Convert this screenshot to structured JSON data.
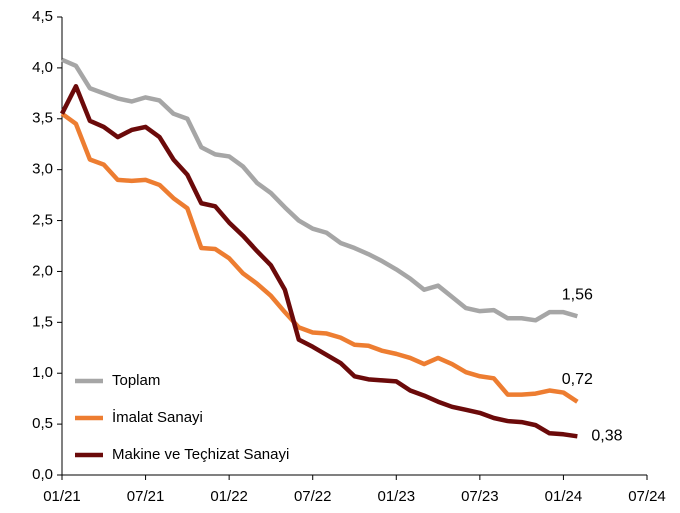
{
  "chart_data": {
    "type": "line",
    "categories": [
      "01/21",
      null,
      null,
      null,
      null,
      null,
      "07/21",
      null,
      null,
      null,
      null,
      null,
      "01/22",
      null,
      null,
      null,
      null,
      null,
      "07/22",
      null,
      null,
      null,
      null,
      null,
      "01/23",
      null,
      null,
      null,
      null,
      null,
      "07/23",
      null,
      null,
      null,
      null,
      null,
      "01/24",
      null,
      null,
      null,
      null,
      null,
      "07/24"
    ],
    "series": [
      {
        "name": "Toplam",
        "color": "#a6a6a6",
        "values": [
          4.08,
          4.02,
          3.8,
          3.75,
          3.7,
          3.67,
          3.71,
          3.68,
          3.55,
          3.5,
          3.22,
          3.15,
          3.13,
          3.03,
          2.87,
          2.77,
          2.63,
          2.5,
          2.42,
          2.38,
          2.28,
          2.23,
          2.17,
          2.1,
          2.02,
          1.93,
          1.82,
          1.86,
          1.75,
          1.64,
          1.61,
          1.62,
          1.54,
          1.54,
          1.52,
          1.6,
          1.6,
          1.56,
          null,
          null,
          null,
          null,
          null
        ],
        "value_labels": [
          null,
          null,
          null,
          null,
          null,
          null,
          null,
          null,
          null,
          null,
          null,
          null,
          null,
          null,
          null,
          null,
          null,
          null,
          null,
          null,
          null,
          null,
          null,
          null,
          null,
          null,
          null,
          null,
          null,
          null,
          null,
          null,
          null,
          null,
          null,
          null,
          null,
          "1,56",
          null,
          null,
          null,
          null,
          null
        ]
      },
      {
        "name": "İmalat Sanayi",
        "color": "#ed7d31",
        "values": [
          3.55,
          3.45,
          3.1,
          3.05,
          2.9,
          2.89,
          2.9,
          2.85,
          2.72,
          2.62,
          2.23,
          2.22,
          2.13,
          1.98,
          1.88,
          1.76,
          1.6,
          1.45,
          1.4,
          1.39,
          1.35,
          1.28,
          1.27,
          1.22,
          1.19,
          1.15,
          1.09,
          1.15,
          1.09,
          1.01,
          0.97,
          0.95,
          0.79,
          0.79,
          0.8,
          0.83,
          0.81,
          0.72,
          null,
          null,
          null,
          null,
          null
        ],
        "value_labels": [
          null,
          null,
          null,
          null,
          null,
          null,
          null,
          null,
          null,
          null,
          null,
          null,
          null,
          null,
          null,
          null,
          null,
          null,
          null,
          null,
          null,
          null,
          null,
          null,
          null,
          null,
          null,
          null,
          null,
          null,
          null,
          null,
          null,
          null,
          null,
          null,
          null,
          "0,72",
          null,
          null,
          null,
          null,
          null
        ]
      },
      {
        "name": "Makine ve Teçhizat Sanayi",
        "color": "#6b0a0a",
        "values": [
          3.55,
          3.82,
          3.48,
          3.42,
          3.32,
          3.39,
          3.42,
          3.32,
          3.1,
          2.95,
          2.67,
          2.64,
          2.48,
          2.35,
          2.2,
          2.06,
          1.82,
          1.33,
          1.26,
          1.18,
          1.1,
          0.97,
          0.94,
          0.93,
          0.92,
          0.83,
          0.78,
          0.72,
          0.67,
          0.64,
          0.61,
          0.56,
          0.53,
          0.52,
          0.49,
          0.41,
          0.4,
          0.38,
          null,
          null,
          null,
          null,
          null
        ],
        "value_labels": [
          null,
          null,
          null,
          null,
          null,
          null,
          null,
          null,
          null,
          null,
          null,
          null,
          null,
          null,
          null,
          null,
          null,
          null,
          null,
          null,
          null,
          null,
          null,
          null,
          null,
          null,
          null,
          null,
          null,
          null,
          null,
          null,
          null,
          null,
          null,
          null,
          null,
          "0,38",
          null,
          null,
          null,
          null,
          null
        ]
      }
    ],
    "ylim": [
      0,
      4.5
    ],
    "yticks": [
      {
        "value": 0,
        "label": "0,0"
      },
      {
        "value": 0.5,
        "label": "0,5"
      },
      {
        "value": 1,
        "label": "1,0"
      },
      {
        "value": 1.5,
        "label": "1,5"
      },
      {
        "value": 2,
        "label": "2,0"
      },
      {
        "value": 2.5,
        "label": "2,5"
      },
      {
        "value": 3,
        "label": "3,0"
      },
      {
        "value": 3.5,
        "label": "3,5"
      },
      {
        "value": 4,
        "label": "4,0"
      },
      {
        "value": 4.5,
        "label": "4,5"
      }
    ],
    "grid": false,
    "legend": "lower left"
  }
}
